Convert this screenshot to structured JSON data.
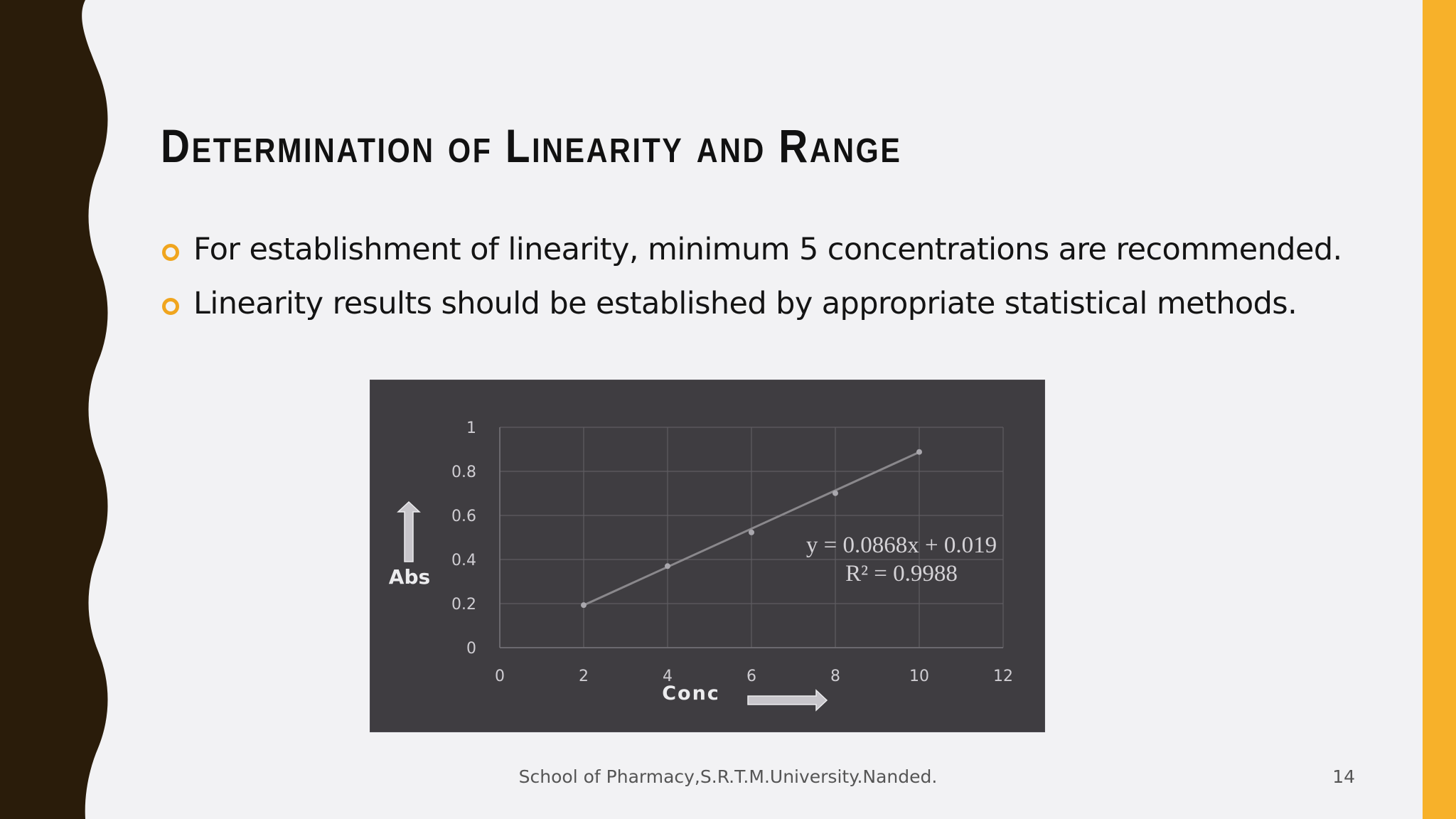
{
  "slide": {
    "title_parts": [
      {
        "cap": "D",
        "rest": "ETERMINATION"
      },
      {
        "cap": "",
        "rest": "OF"
      },
      {
        "cap": "L",
        "rest": "INEARITY"
      },
      {
        "cap": "",
        "rest": "AND"
      },
      {
        "cap": "R",
        "rest": "ANGE"
      }
    ],
    "bullets": [
      "For establishment of linearity, minimum 5 concentrations are recommended.",
      "Linearity results should be established by appropriate statistical methods."
    ],
    "footer": "School of Pharmacy,S.R.T.M.University.Nanded.",
    "page_number": "14"
  },
  "colors": {
    "background": "#f2f2f4",
    "left_border": "#2a1c0a",
    "accent": "#f7b12a",
    "bullet": "#f0a51e",
    "chart_background": "#3f3d41",
    "grid": "#5f5d62",
    "line": "#8a888c"
  },
  "chart_data": {
    "type": "scatter",
    "x": [
      2,
      4,
      6,
      8,
      10
    ],
    "series": [
      {
        "values": [
          0.193,
          0.37,
          0.523,
          0.701,
          0.888
        ]
      }
    ],
    "trendline": {
      "slope": 0.0868,
      "intercept": 0.019
    },
    "equation": "y = 0.0868x + 0.019",
    "r_squared": "R² = 0.9988",
    "xlabel": "Conc",
    "ylabel": "Abs",
    "xlim": [
      0,
      12
    ],
    "ylim": [
      0,
      1
    ],
    "xticks": [
      0,
      2,
      4,
      6,
      8,
      10,
      12
    ],
    "yticks": [
      0,
      0.2,
      0.4,
      0.6,
      0.8,
      1
    ],
    "grid": true
  }
}
